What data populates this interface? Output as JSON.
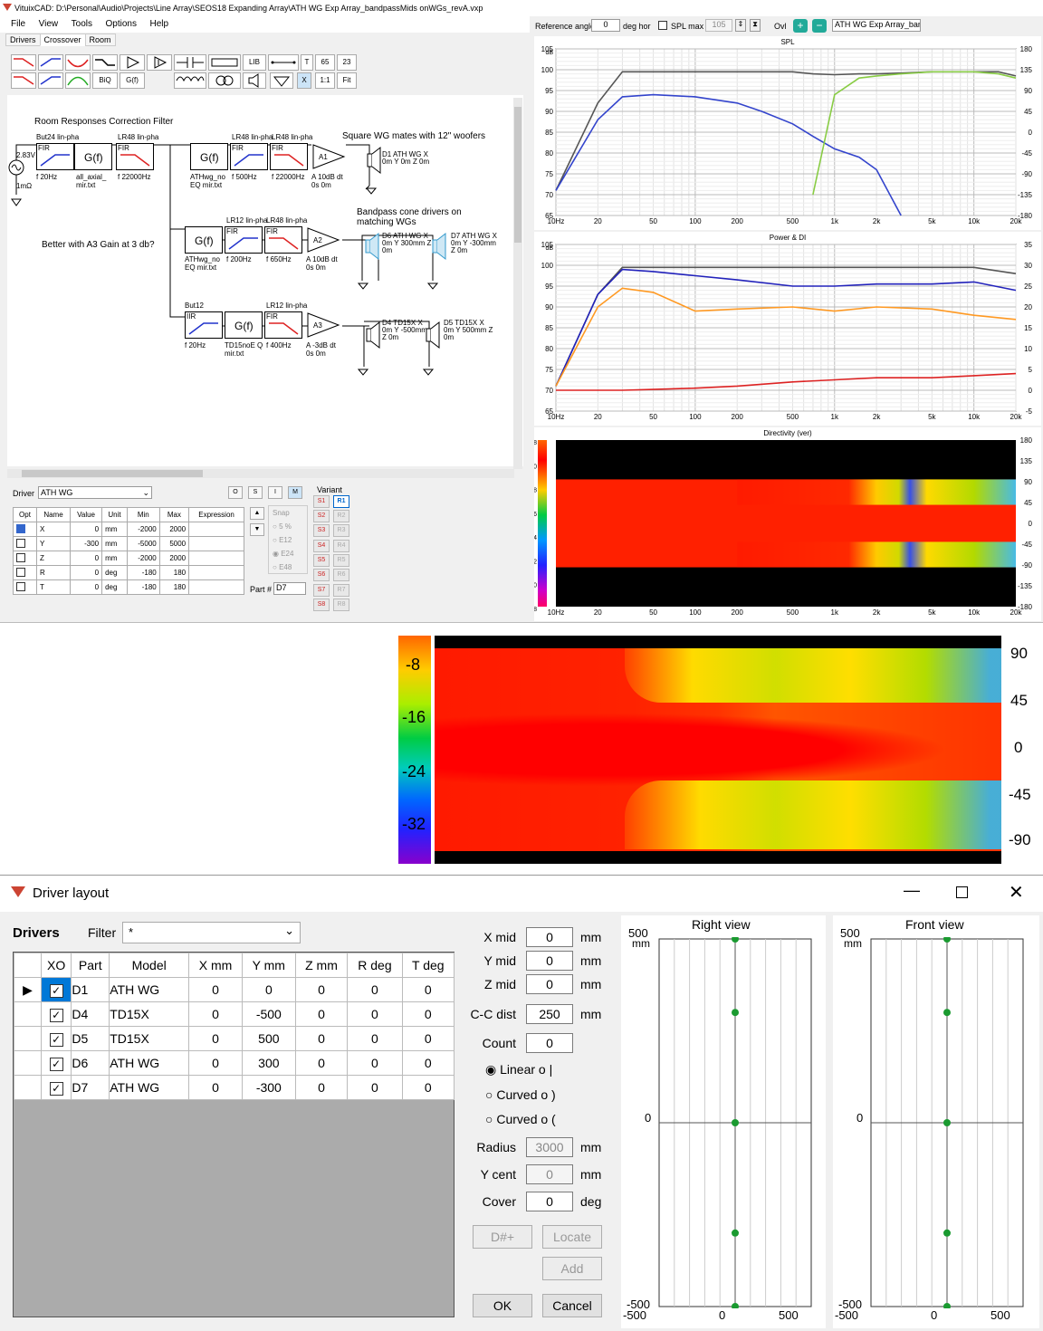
{
  "window": {
    "title": "VituixCAD: D:\\Personal\\Audio\\Projects\\Line Array\\SEOS18 Expanding Array\\ATH WG Exp Array_bandpassMids onWGs_revA.vxp",
    "menu": [
      "File",
      "View",
      "Tools",
      "Options",
      "Help"
    ],
    "tabs": [
      "Drivers",
      "Crossover",
      "Room"
    ]
  },
  "toolbar": {
    "v65": "65",
    "v23": "23",
    "t": "T",
    "lib": "LIB",
    "biq": "BiQ",
    "gf": "G(f)",
    "x": "X",
    "one": "1:1",
    "fit": "Fit"
  },
  "schematic": {
    "title1": "Room Responses Correction Filter",
    "title2": "Square WG mates with 12\" woofers",
    "title3": "Bandpass cone drivers on matching WGs",
    "note": "Better with A3 Gain at 3 db?",
    "src_v": "2.83V",
    "src_r": "1mΩ",
    "row1": [
      {
        "hdr": "But24 lin-pha",
        "typ": "FIR",
        "f": "f  20Hz"
      },
      {
        "hdr": "",
        "typ": "G(f)",
        "f": "all_axial_ mir.txt"
      },
      {
        "hdr": "LR48 lin-pha",
        "typ": "FIR",
        "f": "f  22000Hz"
      },
      {
        "hdr": "",
        "typ": "G(f)",
        "f": "ATHwg_no EQ mir.txt"
      },
      {
        "hdr": "LR48 lin-pha",
        "typ": "FIR",
        "f": "f  500Hz"
      },
      {
        "hdr": "LR48 lin-pha",
        "typ": "FIR",
        "f": "f  22000Hz"
      },
      {
        "hdr": "",
        "typ": "A1",
        "f": "A  10dB dt 0s 0m"
      }
    ],
    "row2": [
      {
        "hdr": "",
        "typ": "G(f)",
        "f": "ATHwg_no EQ mir.txt"
      },
      {
        "hdr": "LR12 lin-pha",
        "typ": "FIR",
        "f": "f  200Hz"
      },
      {
        "hdr": "LR48 lin-pha",
        "typ": "FIR",
        "f": "f  650Hz"
      },
      {
        "hdr": "",
        "typ": "A2",
        "f": "A  10dB dt 0s 0m"
      }
    ],
    "row3": [
      {
        "hdr": "But12",
        "typ": "IIR",
        "f": "f  20Hz"
      },
      {
        "hdr": "",
        "typ": "G(f)",
        "f": "TD15noE Q mir.txt"
      },
      {
        "hdr": "LR12 lin-pha",
        "typ": "FIR",
        "f": "f  400Hz"
      },
      {
        "hdr": "",
        "typ": "A3",
        "f": "A  -3dB dt 0s 0m"
      }
    ],
    "drivers": [
      {
        "name": "D1 ATH WG",
        "pos": "X 0m Y 0m Z 0m"
      },
      {
        "name": "D6 ATH WG",
        "pos": "X 0m Y 300mm Z 0m"
      },
      {
        "name": "D7 ATH WG",
        "pos": "X 0m Y -300mm Z 0m"
      },
      {
        "name": "D4 TD15X",
        "pos": "X 0m Y -500mm Z 0m"
      },
      {
        "name": "D5 TD15X",
        "pos": "X 0m Y 500mm Z 0m"
      }
    ]
  },
  "driverpanel": {
    "label": "Driver",
    "value": "ATH WG",
    "btns": [
      "O",
      "S",
      "I",
      "M"
    ],
    "cols": [
      "Opt",
      "Name",
      "Value",
      "Unit",
      "Min",
      "Max",
      "Expression"
    ],
    "rows": [
      [
        "X",
        "0",
        "mm",
        "-2000",
        "2000"
      ],
      [
        "Y",
        "-300",
        "mm",
        "-5000",
        "5000"
      ],
      [
        "Z",
        "0",
        "mm",
        "-2000",
        "2000"
      ],
      [
        "R",
        "0",
        "deg",
        "-180",
        "180"
      ],
      [
        "T",
        "0",
        "deg",
        "-180",
        "180"
      ]
    ],
    "snap": [
      "Snap",
      "5 %",
      "E12",
      "E24",
      "E48"
    ],
    "part_label": "Part #",
    "part": "D7",
    "variant": "Variant",
    "s": [
      "S1",
      "S2",
      "S3",
      "S4",
      "S5",
      "S6",
      "S7",
      "S8"
    ],
    "r": [
      "R1",
      "R2",
      "R3",
      "R4",
      "R5",
      "R6",
      "R7",
      "R8"
    ]
  },
  "refbar": {
    "ref_label": "Reference angle",
    "ref": "0",
    "deg_hor": "deg hor",
    "spl_max": "SPL max",
    "spl_val": "105",
    "ovl": "Ovl",
    "file": "ATH WG Exp Array_bandp"
  },
  "chart_data": [
    {
      "type": "line",
      "title": "SPL",
      "xlabel": "",
      "ylabel": "dB",
      "xlim": [
        10,
        20000
      ],
      "ylim": [
        65,
        105
      ],
      "x": [
        10,
        20,
        30,
        50,
        100,
        200,
        300,
        500,
        700,
        1000,
        1500,
        2000,
        3000,
        5000,
        10000,
        15000,
        20000
      ],
      "series": [
        {
          "color": "#555555",
          "values": [
            71,
            92,
            99.5,
            99.5,
            99.5,
            99.5,
            99.5,
            99.5,
            99,
            98.8,
            99,
            99,
            99.2,
            99.5,
            99.5,
            99.5,
            98.5
          ]
        },
        {
          "color": "#3344cc",
          "values": [
            71,
            88,
            93.5,
            94,
            93.5,
            92,
            90,
            87,
            84,
            81,
            79,
            76,
            65,
            null,
            null,
            null,
            null
          ]
        },
        {
          "color": "#88cc44",
          "values": [
            null,
            null,
            null,
            null,
            null,
            null,
            null,
            null,
            70,
            94,
            98,
            98.5,
            99,
            99.5,
            99.5,
            99,
            98
          ]
        }
      ]
    },
    {
      "type": "line",
      "title": "Power & DI",
      "xlabel": "",
      "ylabel": "dB",
      "xlim": [
        10,
        20000
      ],
      "ylim": [
        65,
        105
      ],
      "x": [
        10,
        20,
        30,
        50,
        100,
        200,
        500,
        1000,
        2000,
        5000,
        10000,
        20000
      ],
      "series": [
        {
          "color": "#555555",
          "values": [
            71,
            93,
            99.5,
            99.5,
            99.5,
            99.5,
            99.5,
            99.5,
            99.5,
            99.5,
            99.5,
            98
          ]
        },
        {
          "color": "#2222bb",
          "values": [
            71,
            93,
            99,
            98.5,
            97.5,
            96.5,
            95,
            95,
            95.5,
            95.5,
            96,
            94
          ]
        },
        {
          "color": "#ff9922",
          "values": [
            71,
            90,
            94.5,
            93.5,
            89,
            89.5,
            90,
            89,
            90,
            89.5,
            88,
            87
          ]
        },
        {
          "color": "#dd2222",
          "values": [
            70,
            70,
            70,
            70.2,
            70.5,
            71,
            72,
            72.5,
            73,
            73,
            73.5,
            74
          ]
        }
      ]
    },
    {
      "type": "heatmap",
      "title": "Directivity (ver)",
      "xlim": [
        10,
        20000
      ],
      "ylim": [
        -180,
        180
      ],
      "scale": [
        8,
        0,
        -8,
        -16,
        -24,
        -32,
        -40,
        -48
      ]
    }
  ],
  "zoom": {
    "scale": [
      "-8",
      "-16",
      "-24",
      "-32"
    ],
    "angles": [
      "90",
      "45",
      "0",
      "-45",
      "-90"
    ]
  },
  "layout": {
    "title": "Driver layout",
    "drivers_label": "Drivers",
    "filter_label": "Filter",
    "filter": "*",
    "cols": [
      "XO",
      "Part",
      "Model",
      "X mm",
      "Y mm",
      "Z mm",
      "R deg",
      "T deg"
    ],
    "rows": [
      [
        "D1",
        "ATH WG",
        "0",
        "0",
        "0",
        "0",
        "0"
      ],
      [
        "D4",
        "TD15X",
        "0",
        "-500",
        "0",
        "0",
        "0"
      ],
      [
        "D5",
        "TD15X",
        "0",
        "500",
        "0",
        "0",
        "0"
      ],
      [
        "D6",
        "ATH WG",
        "0",
        "300",
        "0",
        "0",
        "0"
      ],
      [
        "D7",
        "ATH WG",
        "0",
        "-300",
        "0",
        "0",
        "0"
      ]
    ],
    "fields": [
      {
        "label": "X mid",
        "value": "0",
        "unit": "mm"
      },
      {
        "label": "Y mid",
        "value": "0",
        "unit": "mm"
      },
      {
        "label": "Z mid",
        "value": "0",
        "unit": "mm"
      },
      {
        "label": "C-C dist",
        "value": "250",
        "unit": "mm"
      },
      {
        "label": "Count",
        "value": "0",
        "unit": ""
      }
    ],
    "radios": [
      "Linear  o  |",
      "Curved  o  )",
      "Curved  o  ("
    ],
    "fields2": [
      {
        "label": "Radius",
        "value": "3000",
        "unit": "mm"
      },
      {
        "label": "Y cent",
        "value": "0",
        "unit": "mm"
      },
      {
        "label": "Cover",
        "value": "0",
        "unit": "deg"
      }
    ],
    "btn_d": "D#+",
    "btn_locate": "Locate",
    "btn_add": "Add",
    "btn_ok": "OK",
    "btn_cancel": "Cancel",
    "right_view": "Right view",
    "front_view": "Front view",
    "ax_top": "500",
    "ax_unit": "mm",
    "ax_mid": "0",
    "ax_bot": "-500",
    "ax_x": [
      "-500",
      "0",
      "500"
    ],
    "right_pts_y": [
      500,
      300,
      0,
      -300,
      -500
    ],
    "front_pts_y": [
      500,
      300,
      0,
      -300,
      -500
    ]
  }
}
